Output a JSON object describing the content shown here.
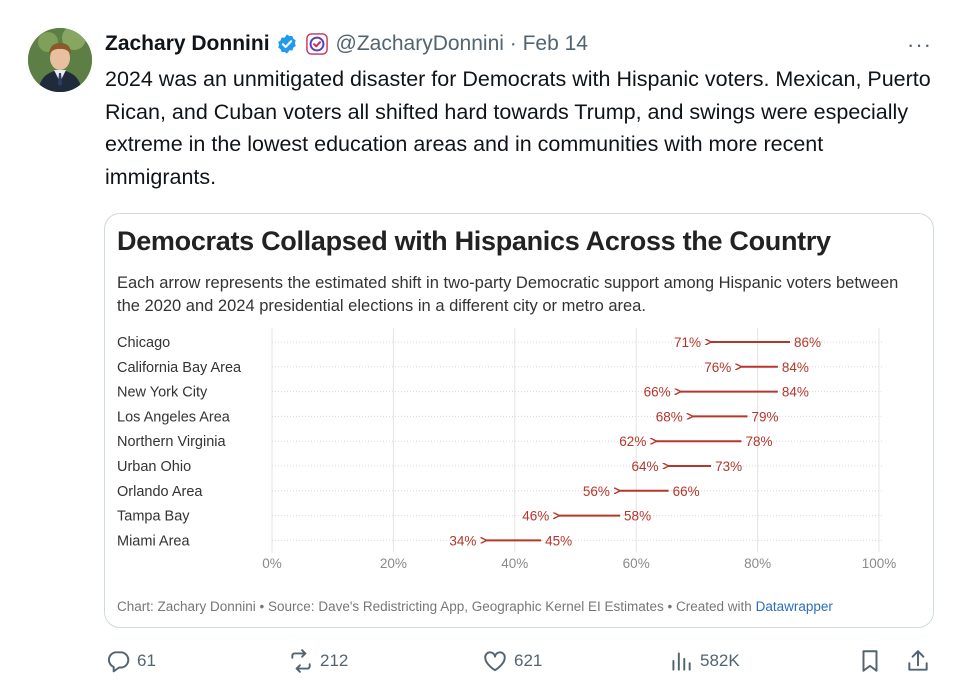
{
  "post": {
    "author_name": "Zachary Donnini",
    "handle_date": "@ZacharyDonnini · Feb 14",
    "more_label": "···",
    "text": "2024 was an unmitigated disaster for Democrats with Hispanic voters. Mexican, Puerto Rican, and Cuban voters all shifted hard towards Trump, and swings were especially extreme in the lowest education areas and in communities with more recent immigrants."
  },
  "card": {
    "footer_prefix": "Chart: Zachary Donnini • Source: Dave's Redistricting App, Geographic Kernel EI Estimates • Created with ",
    "footer_link": "Datawrapper"
  },
  "chart_data": {
    "type": "arrow",
    "title": "Democrats Collapsed with Hispanics Across the Country",
    "subtitle": "Each arrow represents the estimated shift in two-party Democratic support among Hispanic voters between the 2020 and 2024 presidential elections in a different city or metro area.",
    "categories": [
      "Chicago",
      "California Bay Area",
      "New York City",
      "Los Angeles Area",
      "Northern Virginia",
      "Urban Ohio",
      "Orlando Area",
      "Tampa Bay",
      "Miami Area"
    ],
    "series": [
      {
        "name": "2020",
        "values": [
          86,
          84,
          84,
          79,
          78,
          73,
          66,
          58,
          45
        ]
      },
      {
        "name": "2024",
        "values": [
          71,
          76,
          66,
          68,
          62,
          64,
          56,
          46,
          34
        ]
      }
    ],
    "x_ticks": [
      "0%",
      "20%",
      "40%",
      "60%",
      "80%",
      "100%"
    ],
    "xlim": [
      0,
      100
    ],
    "grid": true,
    "color": "#b5362b"
  },
  "actions": {
    "reply_count": "61",
    "repost_count": "212",
    "like_count": "621",
    "views_count": "582K"
  },
  "colors": {
    "accent": "#1d9bf0",
    "muted": "#536471",
    "arrow": "#b5362b"
  }
}
